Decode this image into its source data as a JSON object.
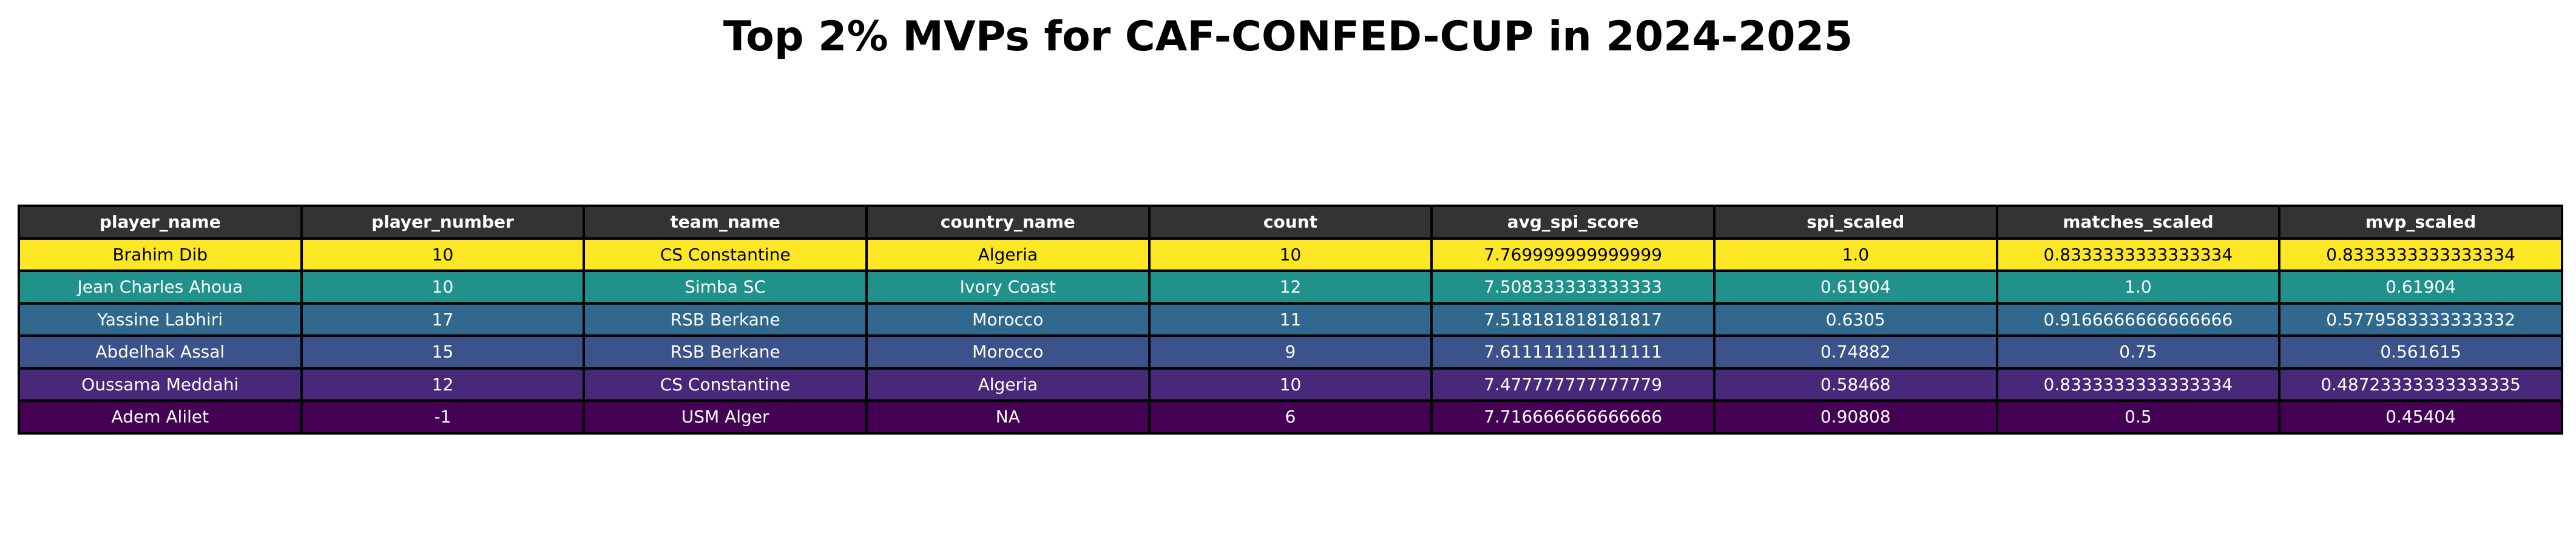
{
  "chart_data": {
    "type": "table",
    "title": "Top 2% MVPs for CAF-CONFED-CUP in 2024-2025",
    "columns": [
      "player_name",
      "player_number",
      "team_name",
      "country_name",
      "count",
      "avg_spi_score",
      "spi_scaled",
      "matches_scaled",
      "mvp_scaled"
    ],
    "rows": [
      [
        "Brahim Dib",
        "10",
        "CS Constantine",
        "Algeria",
        "10",
        "7.769999999999999",
        "1.0",
        "0.8333333333333334",
        "0.8333333333333334"
      ],
      [
        "Jean Charles Ahoua",
        "10",
        "Simba SC",
        "Ivory Coast",
        "12",
        "7.508333333333333",
        "0.61904",
        "1.0",
        "0.61904"
      ],
      [
        "Yassine Labhiri",
        "17",
        "RSB Berkane",
        "Morocco",
        "11",
        "7.518181818181817",
        "0.6305",
        "0.9166666666666666",
        "0.5779583333333332"
      ],
      [
        "Abdelhak Assal",
        "15",
        "RSB Berkane",
        "Morocco",
        "9",
        "7.611111111111111",
        "0.74882",
        "0.75",
        "0.561615"
      ],
      [
        "Oussama Meddahi",
        "12",
        "CS Constantine",
        "Algeria",
        "10",
        "7.477777777777779",
        "0.58468",
        "0.8333333333333334",
        "0.48723333333333335"
      ],
      [
        "Adem Alilet",
        "-1",
        "USM Alger",
        "NA",
        "6",
        "7.716666666666666",
        "0.90808",
        "0.5",
        "0.45404"
      ]
    ],
    "header_colors": {
      "background": "#333333",
      "text": "#ffffff"
    },
    "row_colors": [
      "#fde725",
      "#21918c",
      "#31688e",
      "#3b528b",
      "#482878",
      "#440154"
    ],
    "row_text_colors": [
      "#000000",
      "#ffffff",
      "#ffffff",
      "#ffffff",
      "#ffffff",
      "#ffffff"
    ]
  }
}
